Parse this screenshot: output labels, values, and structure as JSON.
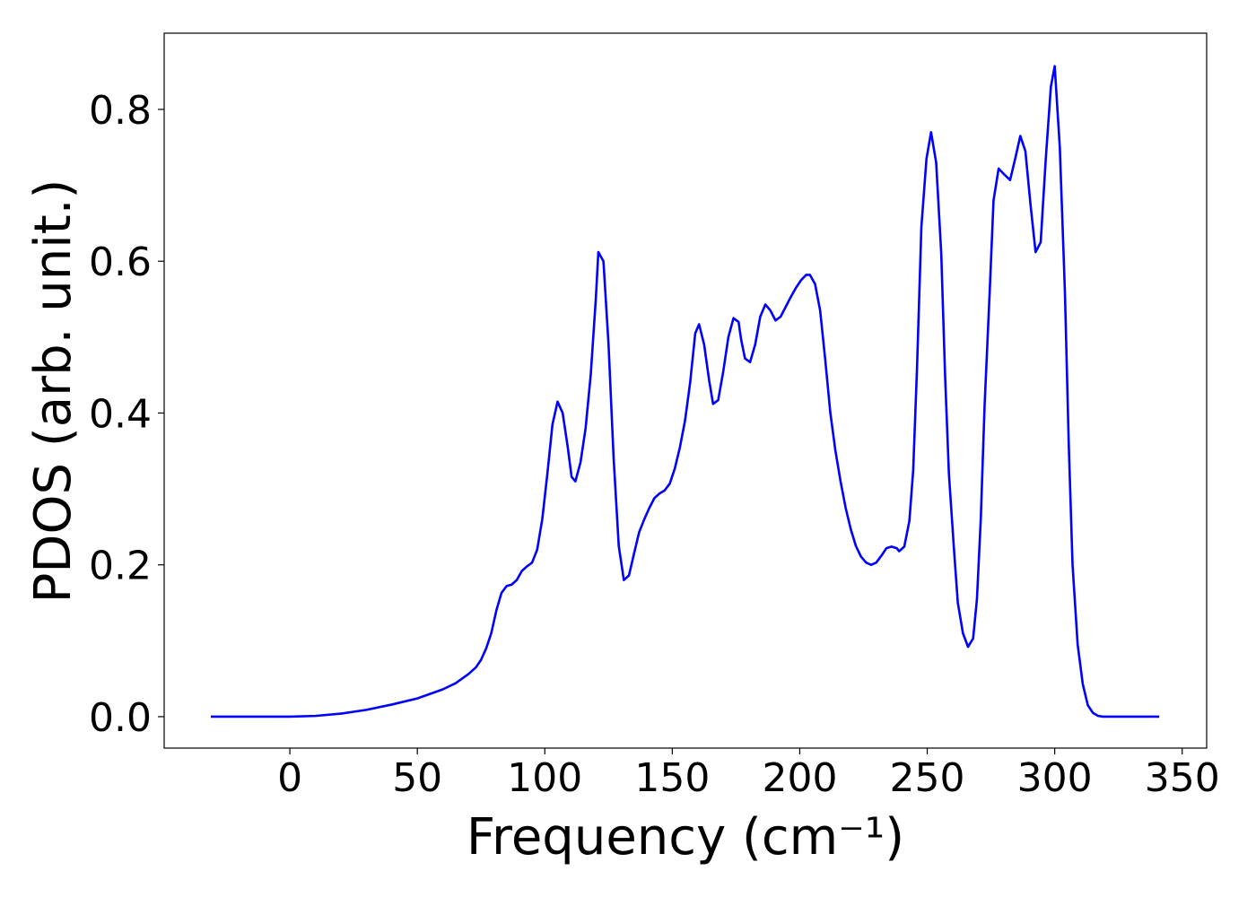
{
  "chart_data": {
    "type": "line",
    "xlabel": "Frequency (cm⁻¹)",
    "ylabel": "PDOS (arb. unit.)",
    "x": [
      -31,
      -20,
      -10,
      0,
      10,
      20,
      30,
      40,
      50,
      60,
      65,
      70,
      73,
      75,
      77,
      79,
      81,
      83,
      85,
      87,
      89,
      91,
      93,
      95,
      97,
      99,
      101,
      103,
      105,
      107,
      109,
      110.5,
      112,
      114,
      116,
      118,
      120,
      121,
      123,
      125,
      127,
      129,
      131,
      133,
      135,
      137,
      139,
      141,
      143,
      145,
      147,
      149,
      151,
      153,
      155,
      157,
      159,
      160.5,
      162.5,
      164.5,
      166,
      168,
      170,
      172,
      174,
      176,
      177,
      178.5,
      180.5,
      182.5,
      184.5,
      186.5,
      188.5,
      190.5,
      192.5,
      194.5,
      196.5,
      198.5,
      200.5,
      202.5,
      204,
      206,
      208,
      210,
      212,
      214,
      216,
      218,
      220,
      222,
      224,
      226,
      228,
      230,
      232,
      234,
      236,
      238,
      239,
      241,
      243,
      244.5,
      246,
      247.7,
      249.7,
      251.5,
      253.5,
      255.5,
      257,
      258.5,
      260.5,
      262,
      264,
      266,
      268,
      269.5,
      271,
      272.5,
      274.5,
      276,
      278,
      280,
      282.5,
      284.5,
      286.5,
      288.5,
      290.5,
      292.5,
      294.5,
      296.5,
      298.5,
      300,
      302,
      304,
      305.5,
      307,
      309,
      311,
      313,
      315,
      317,
      319,
      330,
      341
    ],
    "values": [
      0,
      0,
      0,
      0,
      0.001,
      0.004,
      0.009,
      0.016,
      0.024,
      0.036,
      0.044,
      0.056,
      0.065,
      0.075,
      0.09,
      0.11,
      0.14,
      0.163,
      0.172,
      0.174,
      0.18,
      0.192,
      0.198,
      0.203,
      0.22,
      0.26,
      0.32,
      0.385,
      0.415,
      0.4,
      0.355,
      0.316,
      0.31,
      0.335,
      0.38,
      0.45,
      0.55,
      0.612,
      0.6,
      0.49,
      0.34,
      0.225,
      0.18,
      0.186,
      0.215,
      0.243,
      0.26,
      0.275,
      0.288,
      0.294,
      0.298,
      0.307,
      0.327,
      0.355,
      0.39,
      0.44,
      0.505,
      0.517,
      0.49,
      0.442,
      0.412,
      0.417,
      0.455,
      0.5,
      0.525,
      0.52,
      0.497,
      0.472,
      0.467,
      0.49,
      0.527,
      0.543,
      0.535,
      0.522,
      0.527,
      0.54,
      0.553,
      0.565,
      0.575,
      0.582,
      0.582,
      0.57,
      0.535,
      0.47,
      0.4,
      0.35,
      0.31,
      0.275,
      0.247,
      0.225,
      0.211,
      0.203,
      0.2,
      0.203,
      0.212,
      0.222,
      0.224,
      0.222,
      0.218,
      0.224,
      0.258,
      0.325,
      0.46,
      0.645,
      0.735,
      0.77,
      0.73,
      0.61,
      0.45,
      0.32,
      0.22,
      0.15,
      0.11,
      0.092,
      0.103,
      0.155,
      0.26,
      0.41,
      0.56,
      0.68,
      0.722,
      0.715,
      0.707,
      0.735,
      0.765,
      0.745,
      0.675,
      0.612,
      0.625,
      0.735,
      0.83,
      0.857,
      0.75,
      0.56,
      0.36,
      0.2,
      0.095,
      0.043,
      0.015,
      0.005,
      0.001,
      0,
      0,
      0
    ],
    "color": "#0000ff",
    "xlim": [
      -49.3,
      359.6
    ],
    "xticks": [
      0,
      50,
      100,
      150,
      200,
      250,
      300,
      350
    ],
    "ylim": [
      -0.0414,
      0.9004
    ],
    "yticks": [
      {
        "value": 0,
        "label": "0.0"
      },
      0.2,
      0.4,
      0.6,
      0.8
    ],
    "grid": false
  }
}
